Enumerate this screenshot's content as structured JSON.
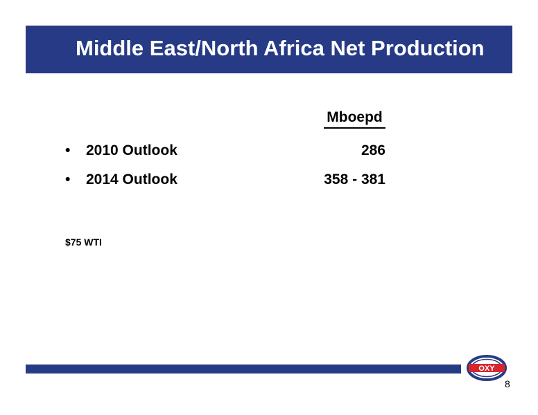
{
  "slide": {
    "title": "Middle East/North Africa Net Production",
    "column_header": "Mboepd",
    "rows": [
      {
        "bullet": "•",
        "label": "2010 Outlook",
        "value": "286"
      },
      {
        "bullet": "•",
        "label": "2014 Outlook",
        "value": "358 - 381"
      }
    ],
    "footnote": "$75 WTI",
    "page_number": "8",
    "logo_text": "OXY"
  },
  "colors": {
    "brand_blue": "#263a85",
    "logo_red": "#d7262e"
  }
}
